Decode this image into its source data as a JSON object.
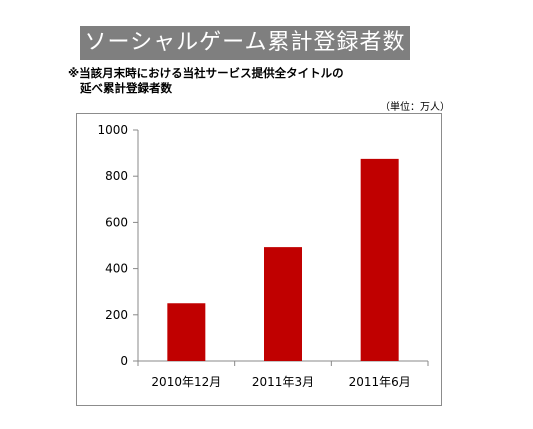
{
  "header": {
    "title": "ソーシャルゲーム累計登録者数",
    "note_line1": "※当該月末時における当社サービス提供全タイトルの",
    "note_line2": "延べ累計登録者数",
    "unit": "（単位：万人）"
  },
  "colors": {
    "bar": "#c00000",
    "title_bg": "#7f7f7f"
  },
  "chart_data": {
    "type": "bar",
    "categories": [
      "2010年12月",
      "2011年3月",
      "2011年6月"
    ],
    "values": [
      250,
      493,
      875
    ],
    "title": "ソーシャルゲーム累計登録者数",
    "xlabel": "",
    "ylabel": "",
    "ylim": [
      0,
      1000
    ],
    "yticks": [
      0,
      200,
      400,
      600,
      800,
      1000
    ],
    "grid": false,
    "legend": "none"
  }
}
